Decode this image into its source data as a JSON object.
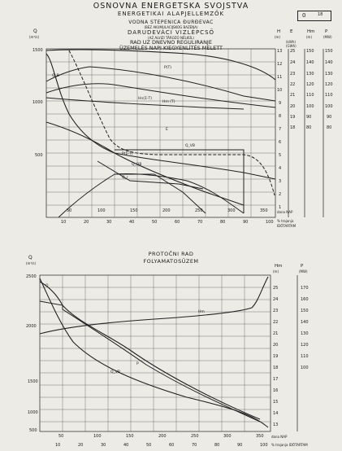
{
  "header": {
    "line1": "OSNOVNA ENERGETSKA SVOJSTVA",
    "line2": "ENERGETIKAI ALAPJELLEMZŐK",
    "line3": "VODNA STEPENICA ĐURĐEVAC",
    "line4": "(BEZ AKUMULACIJSKOG BAZENA)",
    "line5": "DARUDEVÁCI VIZLÉPCSŐ",
    "line6": "(AZ ALVIZI TÁROZÓ NÉLKÜL)",
    "line7": "RAD UZ DNEVNO REGULIRANJE",
    "line8": "ÜZEMELÉS NAPI KIEGYENLÍTÉS MELETT"
  },
  "page_box": {
    "number": "0",
    "note": "18"
  },
  "top_chart": {
    "axis_Q_label": "Q",
    "axis_Q_unit": "(m³/s)",
    "y_ticks": [
      "1500",
      "1000",
      "500"
    ],
    "H_label": "H",
    "H_unit": "(m)",
    "H_ticks": [
      "13",
      "12",
      "11",
      "10",
      "9",
      "8",
      "7",
      "6",
      "5",
      "4",
      "3",
      "2",
      "1"
    ],
    "E_label": "E",
    "E_unit": "(kWh)",
    "E_unit2": "(GWh)",
    "E_ticks": [
      "25",
      "24",
      "23",
      "22",
      "21",
      "20",
      "19",
      "18"
    ],
    "Hm_label": "Hm",
    "Hm_unit": "(m)",
    "Hm_ticks": [
      "150",
      "140",
      "130",
      "120",
      "110",
      "100",
      "90",
      "80"
    ],
    "P_label": "P",
    "P_unit": "(MW)",
    "P_ticks": [
      "150",
      "140",
      "130",
      "120",
      "110",
      "100",
      "90",
      "80"
    ],
    "x_days": [
      "50",
      "100",
      "150",
      "200",
      "250",
      "300",
      "350"
    ],
    "x_days_label": "dana NAP",
    "x_pct": [
      "10",
      "20",
      "30",
      "40",
      "50",
      "60",
      "70",
      "80",
      "90",
      "100"
    ],
    "x_pct_label": "% trajanja",
    "x_pct_label2": "IDŐTARTAM",
    "curve_labels": {
      "P_T": "P(T)",
      "Q_B": "Q_B",
      "Hn_T": "Hn(Σ-T)",
      "Hm_T": "Hm (T)",
      "E": "E",
      "Q_VB": "Q_VB",
      "P_Hm": "P(Σ-T)",
      "Q_OB": "Q_OB",
      "Q_r": "Q_r"
    }
  },
  "middle_title": {
    "line1": "PROTOČNI RAD",
    "line2": "FOLYAMATOSÜZEM"
  },
  "bottom_chart": {
    "axis_Q_label": "Q",
    "axis_Q_unit": "(m³/s)",
    "y_ticks": [
      "2500",
      "2000",
      "1500",
      "1000",
      "500"
    ],
    "H_label": "Hm",
    "H_unit": "(m)",
    "H_ticks": [
      "25",
      "24",
      "23",
      "22",
      "21",
      "20",
      "19",
      "18",
      "17",
      "16",
      "15",
      "14",
      "13"
    ],
    "P_label": "P",
    "P_unit": "(MW)",
    "P_ticks": [
      "170",
      "160",
      "150",
      "140",
      "130",
      "120",
      "110",
      "100"
    ],
    "x_days": [
      "50",
      "100",
      "150",
      "200",
      "250",
      "300",
      "350"
    ],
    "x_days_label": "dana NAP",
    "x_pct": [
      "10",
      "20",
      "30",
      "40",
      "50",
      "60",
      "70",
      "80",
      "90",
      "100"
    ],
    "x_pct_label": "% trajanja IDŐTARTAM",
    "curve_labels": {
      "Q": "Q",
      "Hm": "Hm",
      "Q_VB": "Q_VB",
      "P": "P"
    }
  }
}
